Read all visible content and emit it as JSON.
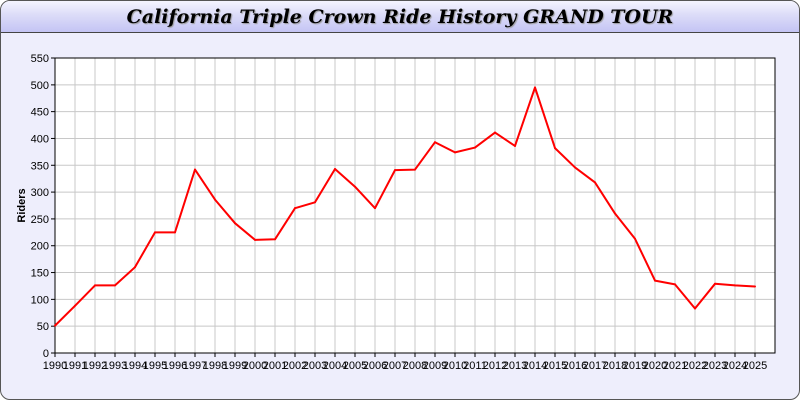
{
  "chart_data": {
    "type": "line",
    "title": "California Triple Crown Ride History GRAND TOUR",
    "xlabel": "",
    "ylabel": "Riders",
    "ylim": [
      0,
      550
    ],
    "yticks": [
      0,
      50,
      100,
      150,
      200,
      250,
      300,
      350,
      400,
      450,
      500,
      550
    ],
    "grid": true,
    "x": [
      "1990",
      "1991",
      "1992",
      "1993",
      "1994",
      "1995",
      "1996",
      "1997",
      "1998",
      "1999",
      "2000",
      "2001",
      "2002",
      "2003",
      "2004",
      "2005",
      "2006",
      "2007",
      "2008",
      "2009",
      "2010",
      "2011",
      "2012",
      "2013",
      "2014",
      "2015",
      "2016",
      "2017",
      "2018",
      "2019",
      "2020",
      "2021",
      "2022",
      "2023",
      "2024",
      "2025"
    ],
    "series": [
      {
        "values": [
          51,
          88,
          126,
          126,
          160,
          225,
          225,
          342,
          286,
          242,
          211,
          212,
          270,
          281,
          343,
          310,
          270,
          341,
          342,
          393,
          374,
          383,
          411,
          386,
          495,
          382,
          346,
          318,
          260,
          213,
          135,
          128,
          83,
          129,
          126,
          124
        ],
        "color": "#ff0000"
      }
    ]
  }
}
